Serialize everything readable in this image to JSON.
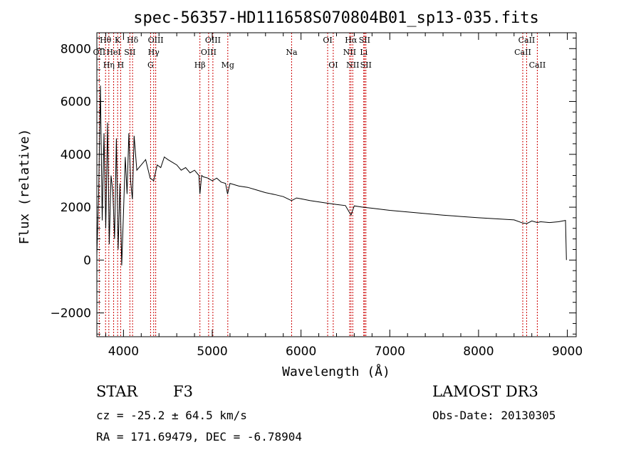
{
  "chart_data": {
    "type": "line",
    "title": "spec-56357-HD111658S070804B01_sp13-035.fits",
    "xlabel": "Wavelength (Å)",
    "ylabel": "Flux (relative)",
    "xlim": [
      3700,
      9100
    ],
    "ylim": [
      -2900,
      8600
    ],
    "x_ticks": [
      4000,
      5000,
      6000,
      7000,
      8000,
      9000
    ],
    "y_ticks": [
      -2000,
      0,
      2000,
      4000,
      6000,
      8000
    ],
    "series": [
      {
        "name": "spectrum",
        "x": [
          3700,
          3720,
          3740,
          3760,
          3780,
          3800,
          3820,
          3840,
          3860,
          3880,
          3900,
          3920,
          3940,
          3960,
          3980,
          4000,
          4020,
          4040,
          4060,
          4080,
          4100,
          4120,
          4150,
          4200,
          4250,
          4300,
          4340,
          4380,
          4420,
          4460,
          4500,
          4550,
          4600,
          4650,
          4700,
          4750,
          4800,
          4850,
          4861,
          4880,
          4900,
          4950,
          5000,
          5050,
          5100,
          5150,
          5172,
          5200,
          5300,
          5400,
          5500,
          5600,
          5700,
          5800,
          5893,
          5950,
          6000,
          6100,
          6200,
          6300,
          6400,
          6500,
          6563,
          6600,
          6700,
          6800,
          6900,
          7000,
          7200,
          7400,
          7600,
          7800,
          8000,
          8200,
          8400,
          8498,
          8542,
          8600,
          8662,
          8700,
          8800,
          8900,
          8980,
          8990
        ],
        "y": [
          200,
          2500,
          6600,
          1500,
          4800,
          1200,
          5200,
          600,
          3200,
          2600,
          800,
          4600,
          400,
          2900,
          -200,
          1800,
          3900,
          2500,
          4800,
          3000,
          2300,
          4700,
          3400,
          3600,
          3800,
          3100,
          3000,
          3600,
          3500,
          3900,
          3800,
          3700,
          3600,
          3400,
          3500,
          3300,
          3400,
          3200,
          2500,
          3200,
          3150,
          3100,
          3000,
          3100,
          2950,
          2900,
          2500,
          2900,
          2800,
          2750,
          2650,
          2550,
          2480,
          2400,
          2250,
          2350,
          2320,
          2250,
          2200,
          2150,
          2100,
          2060,
          1700,
          2050,
          2000,
          1960,
          1920,
          1880,
          1820,
          1760,
          1700,
          1650,
          1600,
          1560,
          1520,
          1400,
          1380,
          1480,
          1420,
          1450,
          1420,
          1450,
          1500,
          0
        ]
      }
    ],
    "spectral_lines": [
      {
        "name": "OII",
        "wavelength": 3727,
        "row": 2
      },
      {
        "name": "Hθ",
        "wavelength": 3798,
        "row": 1
      },
      {
        "name": "Hη",
        "wavelength": 3835,
        "row": 3
      },
      {
        "name": "HeI",
        "wavelength": 3889,
        "row": 2
      },
      {
        "name": "K",
        "wavelength": 3934,
        "row": 1
      },
      {
        "name": "H",
        "wavelength": 3968,
        "row": 3
      },
      {
        "name": "SII",
        "wavelength": 4072,
        "row": 2
      },
      {
        "name": "Hδ",
        "wavelength": 4102,
        "row": 1
      },
      {
        "name": "G",
        "wavelength": 4305,
        "row": 3
      },
      {
        "name": "Hγ",
        "wavelength": 4340,
        "row": 2
      },
      {
        "name": "OIII",
        "wavelength": 4363,
        "row": 1
      },
      {
        "name": "Hβ",
        "wavelength": 4861,
        "row": 3
      },
      {
        "name": "OIII",
        "wavelength": 4959,
        "row": 2
      },
      {
        "name": "OIII",
        "wavelength": 5007,
        "row": 1
      },
      {
        "name": "Mg",
        "wavelength": 5175,
        "row": 3
      },
      {
        "name": "Na",
        "wavelength": 5894,
        "row": 2
      },
      {
        "name": "OI",
        "wavelength": 6300,
        "row": 1
      },
      {
        "name": "OI",
        "wavelength": 6363,
        "row": 3
      },
      {
        "name": "NII",
        "wavelength": 6548,
        "row": 2
      },
      {
        "name": "Hα",
        "wavelength": 6563,
        "row": 1
      },
      {
        "name": "NII",
        "wavelength": 6583,
        "row": 3
      },
      {
        "name": "Li",
        "wavelength": 6707,
        "row": 2
      },
      {
        "name": "SII",
        "wavelength": 6716,
        "row": 1
      },
      {
        "name": "SII",
        "wavelength": 6731,
        "row": 3
      },
      {
        "name": "CaII",
        "wavelength": 8498,
        "row": 2
      },
      {
        "name": "CaII",
        "wavelength": 8542,
        "row": 1
      },
      {
        "name": "CaII",
        "wavelength": 8662,
        "row": 3
      }
    ],
    "line_color": "#000000",
    "marker_color": "#cc0000"
  },
  "info": {
    "object_class": "STAR",
    "subclass": "F3",
    "survey": "LAMOST DR3",
    "cz": "cz = -25.2 ± 64.5 km/s",
    "obs_date": "Obs-Date: 20130305",
    "coords": "RA = 171.69479, DEC =  -6.78904"
  }
}
